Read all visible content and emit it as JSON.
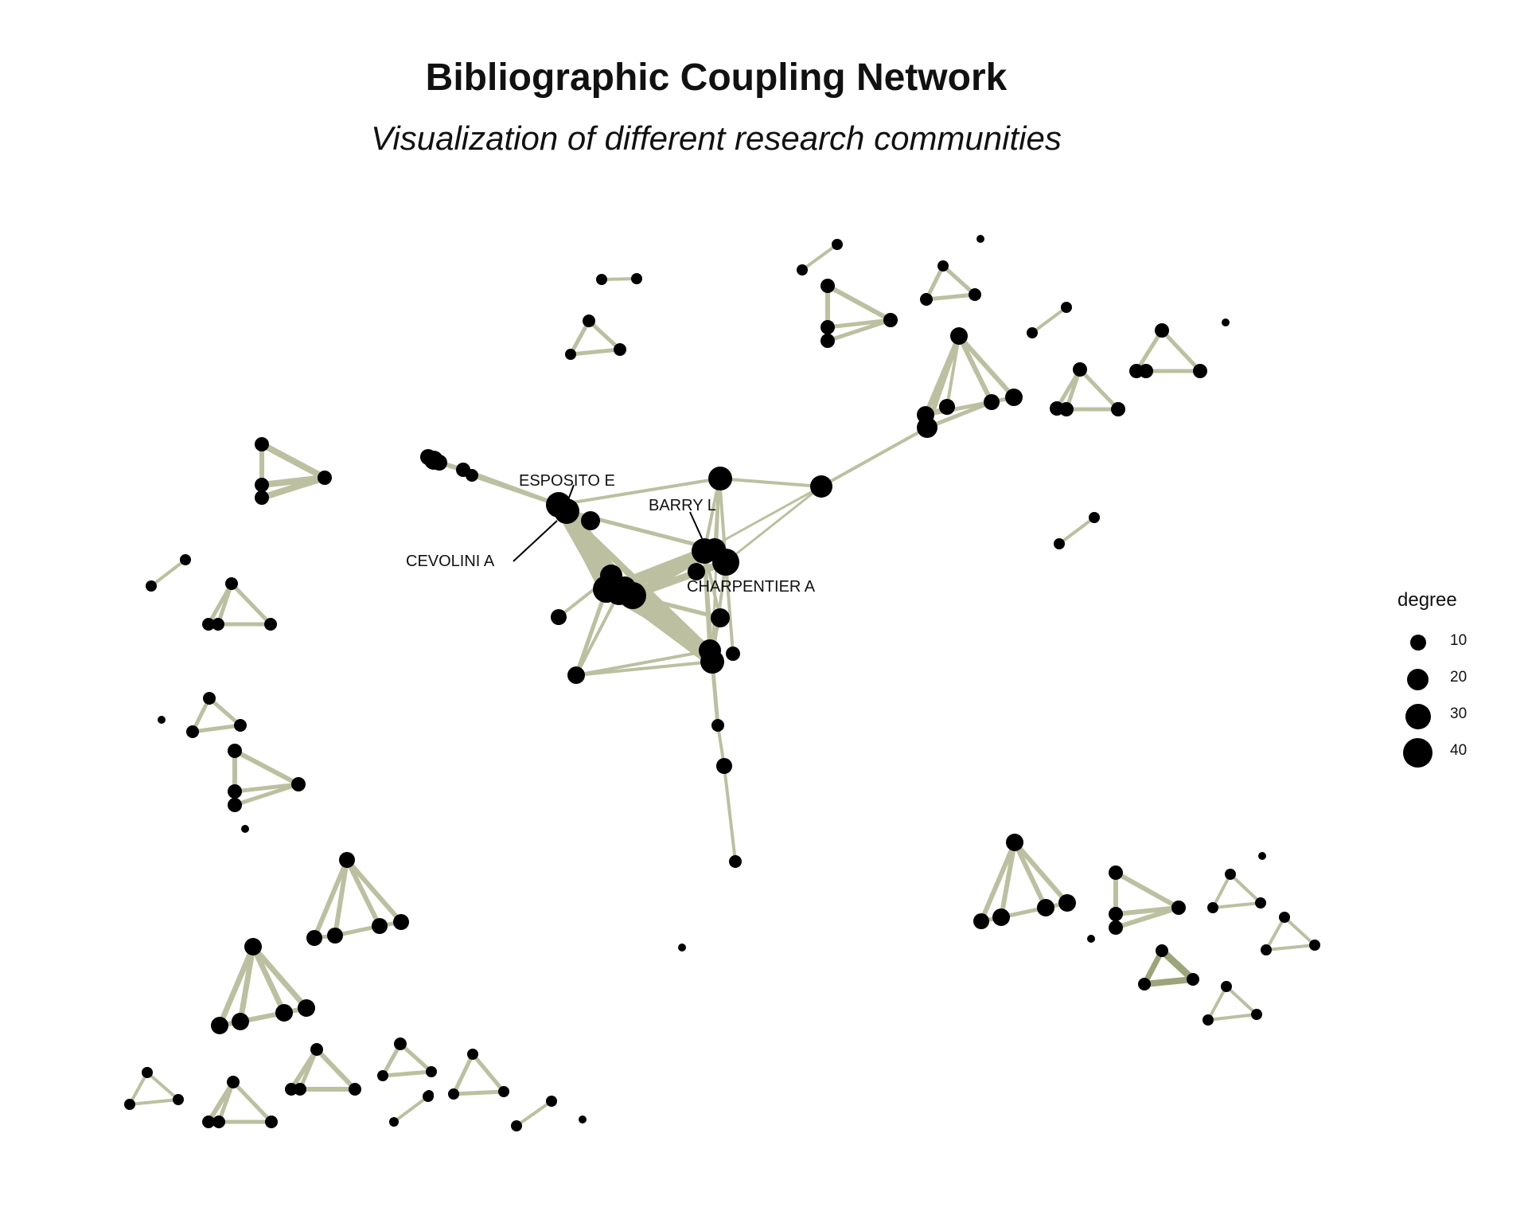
{
  "title": "Bibliographic Coupling Network",
  "subtitle": "Visualization of different research communities",
  "colors": {
    "edge": "#bcc0a0",
    "edge_dark": "#9ca47a",
    "node": "#000000",
    "label_line": "#000000"
  },
  "labels": [
    {
      "name": "ESPOSITO E",
      "ref": "esposito"
    },
    {
      "name": "BARRY L",
      "ref": "barry"
    },
    {
      "name": "CEVOLINI A",
      "ref": "cevolini"
    },
    {
      "name": "CHARPENTIER A",
      "ref": "charpentier"
    }
  ],
  "legend": {
    "title": "degree",
    "items": [
      {
        "label": "10",
        "degree": 10
      },
      {
        "label": "20",
        "degree": 20
      },
      {
        "label": "30",
        "degree": 30
      },
      {
        "label": "40",
        "degree": 40
      }
    ]
  }
}
